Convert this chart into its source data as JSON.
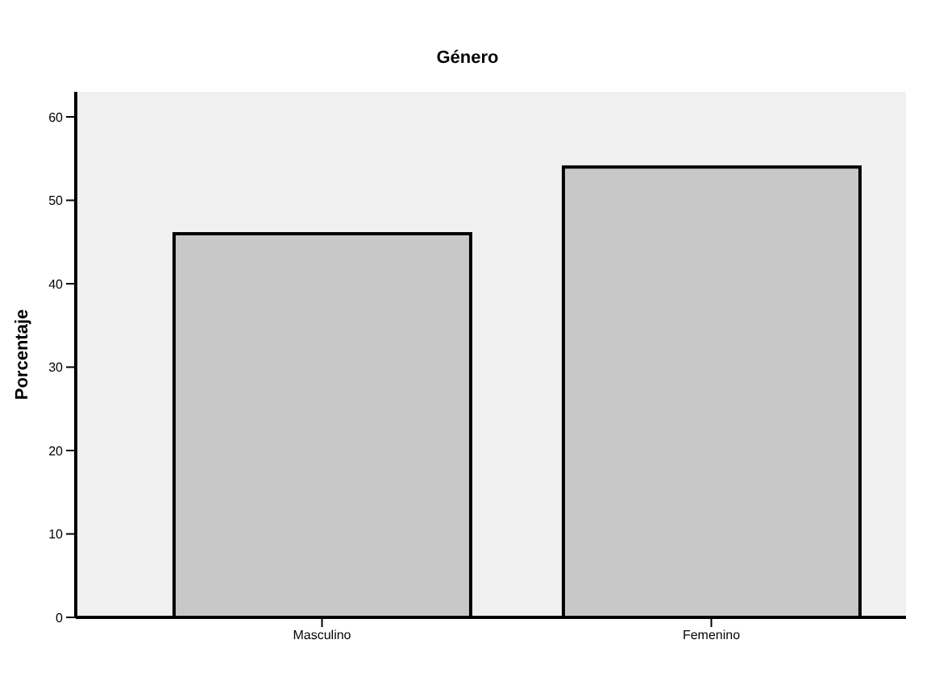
{
  "chart_data": {
    "type": "bar",
    "title": "Género",
    "ylabel": "Porcentaje",
    "categories": [
      "Masculino",
      "Femenino"
    ],
    "values": [
      46,
      54
    ],
    "color": "#c8c8c8",
    "ylim": [
      0,
      63
    ],
    "yticks": [
      0,
      10,
      20,
      30,
      40,
      50,
      60
    ],
    "grid": false,
    "legend": false
  }
}
